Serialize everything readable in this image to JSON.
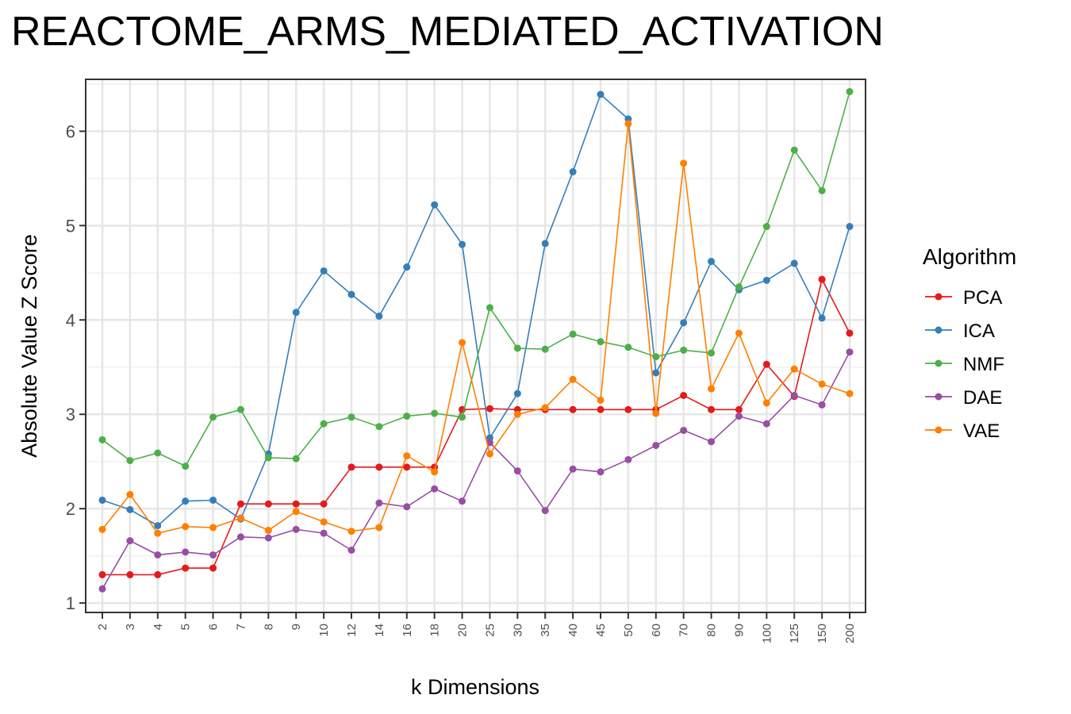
{
  "chart_data": {
    "type": "line",
    "title": "REACTOME_ARMS_MEDIATED_ACTIVATION",
    "xlabel": "k Dimensions",
    "ylabel": "Absolute Value Z Score",
    "categories": [
      "2",
      "3",
      "4",
      "5",
      "6",
      "7",
      "8",
      "9",
      "10",
      "12",
      "14",
      "16",
      "18",
      "20",
      "25",
      "30",
      "35",
      "40",
      "45",
      "50",
      "60",
      "70",
      "80",
      "90",
      "100",
      "125",
      "150",
      "200"
    ],
    "ylim": [
      0.9,
      6.55
    ],
    "yticks": [
      1,
      2,
      3,
      4,
      5,
      6
    ],
    "grid": true,
    "legend": {
      "title": "Algorithm",
      "position": "right"
    },
    "series": [
      {
        "name": "PCA",
        "color": "#e41a1c",
        "values": [
          1.3,
          1.3,
          1.3,
          1.37,
          1.37,
          2.05,
          2.05,
          2.05,
          2.05,
          2.44,
          2.44,
          2.44,
          2.44,
          3.05,
          3.06,
          3.05,
          3.05,
          3.05,
          3.05,
          3.05,
          3.05,
          3.2,
          3.05,
          3.05,
          3.53,
          3.19,
          4.43,
          3.86
        ]
      },
      {
        "name": "ICA",
        "color": "#377eb8",
        "values": [
          2.09,
          1.99,
          1.82,
          2.08,
          2.09,
          1.89,
          2.58,
          4.08,
          4.52,
          4.27,
          4.04,
          4.56,
          5.22,
          4.8,
          2.75,
          3.22,
          4.81,
          5.57,
          6.39,
          6.13,
          3.44,
          3.97,
          4.62,
          4.32,
          4.42,
          4.6,
          4.02,
          4.99
        ]
      },
      {
        "name": "NMF",
        "color": "#4daf4a",
        "values": [
          2.73,
          2.51,
          2.59,
          2.45,
          2.97,
          3.05,
          2.54,
          2.53,
          2.9,
          2.97,
          2.87,
          2.98,
          3.01,
          2.97,
          4.13,
          3.7,
          3.69,
          3.85,
          3.77,
          3.71,
          3.61,
          3.68,
          3.65,
          4.35,
          4.99,
          5.8,
          5.37,
          6.42
        ]
      },
      {
        "name": "DAE",
        "color": "#984ea3",
        "values": [
          1.15,
          1.66,
          1.51,
          1.54,
          1.51,
          1.7,
          1.69,
          1.78,
          1.74,
          1.56,
          2.06,
          2.02,
          2.21,
          2.08,
          2.7,
          2.4,
          1.98,
          2.42,
          2.39,
          2.52,
          2.67,
          2.83,
          2.71,
          2.98,
          2.9,
          3.2,
          3.1,
          3.66
        ]
      },
      {
        "name": "VAE",
        "color": "#ff7f00",
        "values": [
          1.78,
          2.15,
          1.74,
          1.81,
          1.8,
          1.9,
          1.77,
          1.97,
          1.86,
          1.76,
          1.8,
          2.56,
          2.39,
          3.76,
          2.58,
          3.0,
          3.07,
          3.37,
          3.15,
          6.08,
          3.01,
          5.66,
          3.27,
          3.86,
          3.12,
          3.48,
          3.32,
          3.22
        ]
      }
    ]
  }
}
